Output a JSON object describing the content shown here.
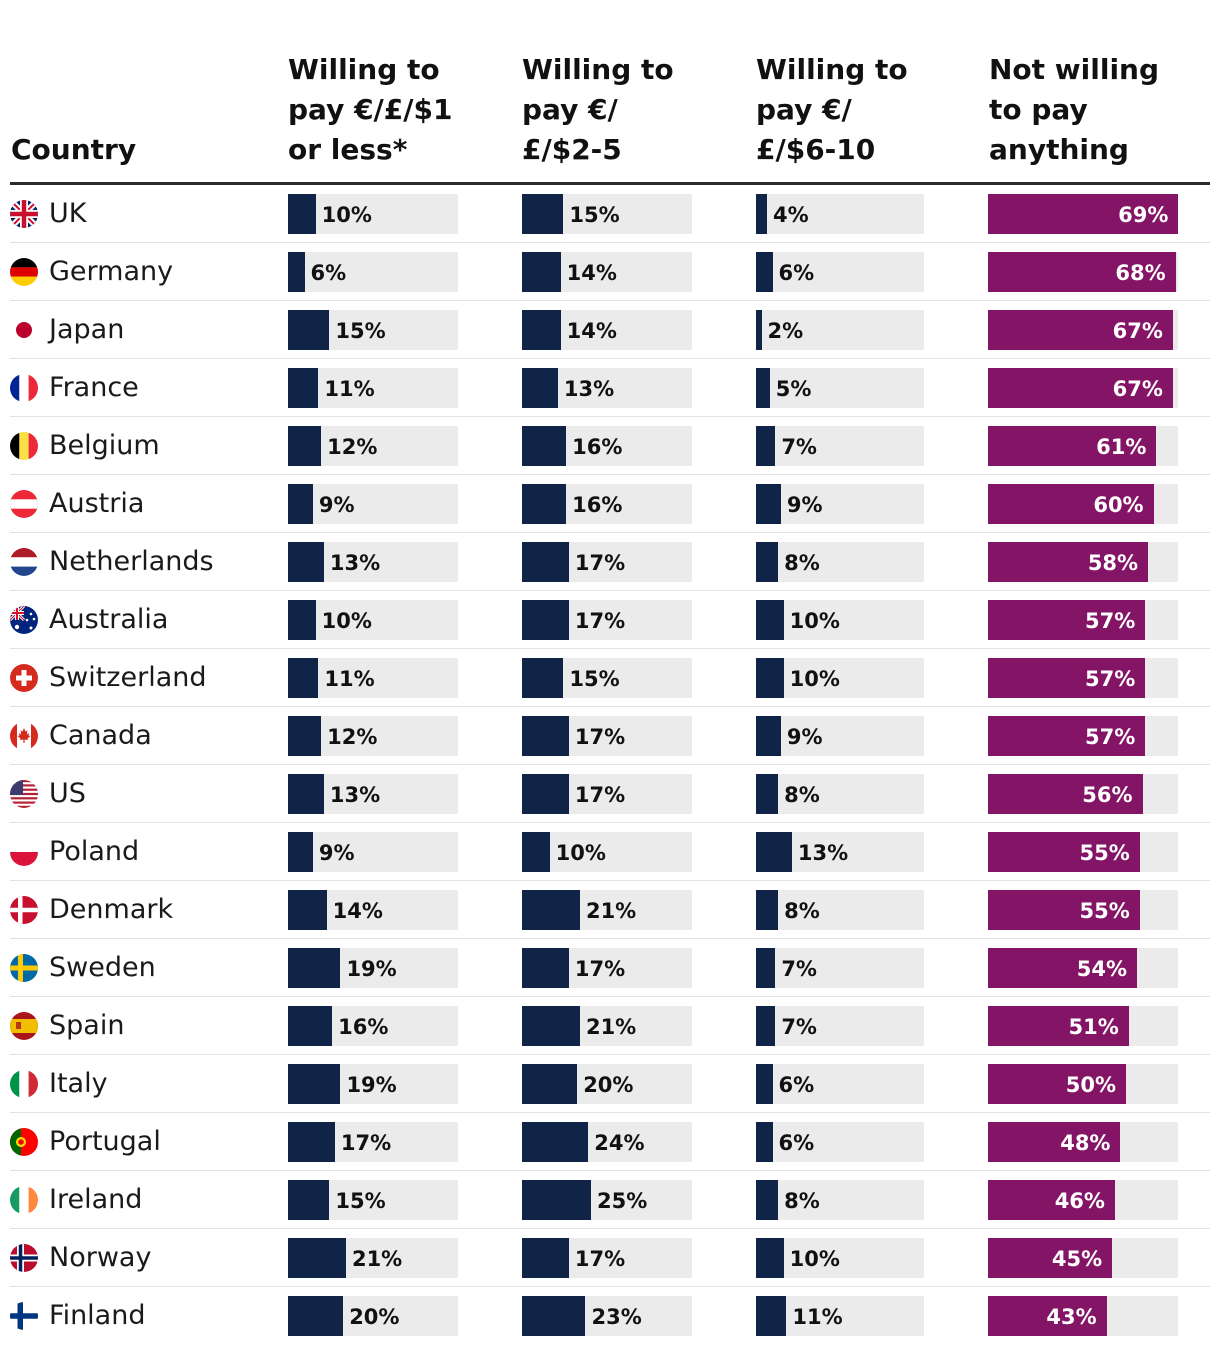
{
  "chart_data": {
    "type": "table",
    "title": "",
    "colors": {
      "willing": "#0f2447",
      "not_willing": "#841566",
      "track": "#ebebeb"
    },
    "headers": {
      "country": [
        "Country"
      ],
      "columns": [
        [
          "Willing to",
          "pay €/£/$1",
          "or less*"
        ],
        [
          "Willing to",
          "pay €/",
          "£/$2-5"
        ],
        [
          "Willing to",
          "pay €/",
          "£/$6-10"
        ],
        [
          "Not willing",
          "to pay",
          "anything"
        ]
      ]
    },
    "series_names": [
      "Willing to pay €/£/$1 or less*",
      "Willing to pay €/£/$2-5",
      "Willing to pay €/£/$6-10",
      "Not willing to pay anything"
    ],
    "categories": [
      "UK",
      "Germany",
      "Japan",
      "France",
      "Belgium",
      "Austria",
      "Netherlands",
      "Australia",
      "Switzerland",
      "Canada",
      "US",
      "Poland",
      "Denmark",
      "Sweden",
      "Spain",
      "Italy",
      "Portugal",
      "Ireland",
      "Norway",
      "Finland"
    ],
    "flags": [
      "uk-flag-icon",
      "germany-flag-icon",
      "japan-flag-icon",
      "france-flag-icon",
      "belgium-flag-icon",
      "austria-flag-icon",
      "netherlands-flag-icon",
      "australia-flag-icon",
      "switzerland-flag-icon",
      "canada-flag-icon",
      "us-flag-icon",
      "poland-flag-icon",
      "denmark-flag-icon",
      "sweden-flag-icon",
      "spain-flag-icon",
      "italy-flag-icon",
      "portugal-flag-icon",
      "ireland-flag-icon",
      "norway-flag-icon",
      "finland-flag-icon"
    ],
    "series": [
      {
        "name": "Willing to pay €/£/$1 or less*",
        "values": [
          10,
          6,
          15,
          11,
          12,
          9,
          13,
          10,
          11,
          12,
          13,
          9,
          14,
          19,
          16,
          19,
          17,
          15,
          21,
          20
        ]
      },
      {
        "name": "Willing to pay €/£/$2-5",
        "values": [
          15,
          14,
          14,
          13,
          16,
          16,
          17,
          17,
          15,
          17,
          17,
          10,
          21,
          17,
          21,
          20,
          24,
          25,
          17,
          23
        ]
      },
      {
        "name": "Willing to pay €/£/$6-10",
        "values": [
          4,
          6,
          2,
          5,
          7,
          9,
          8,
          10,
          10,
          9,
          8,
          13,
          8,
          7,
          7,
          6,
          6,
          8,
          10,
          11
        ]
      },
      {
        "name": "Not willing to pay anything",
        "values": [
          69,
          68,
          67,
          67,
          61,
          60,
          58,
          57,
          57,
          57,
          56,
          55,
          55,
          54,
          51,
          50,
          48,
          46,
          45,
          43
        ]
      }
    ],
    "value_suffix": "%",
    "scale_max": 70
  }
}
